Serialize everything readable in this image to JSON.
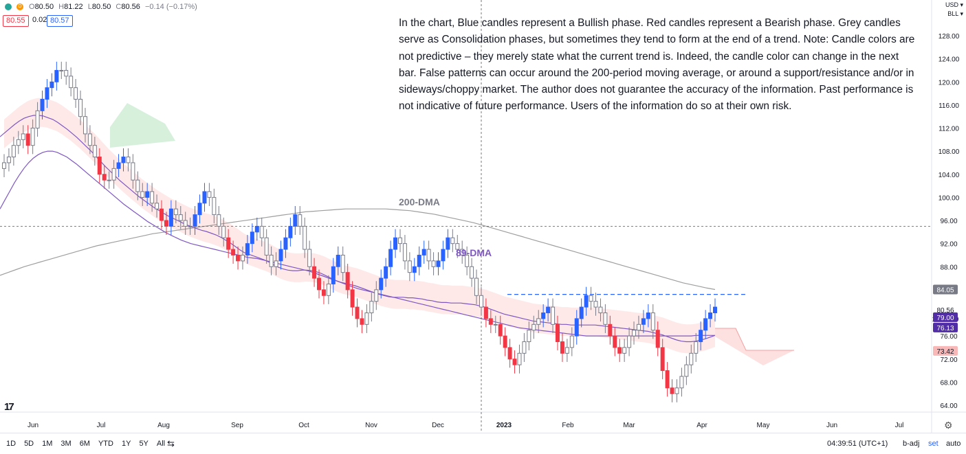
{
  "header": {
    "interval_icon": "D",
    "ohlc": [
      {
        "label": "O",
        "value": "80.50"
      },
      {
        "label": "H",
        "value": "81.22"
      },
      {
        "label": "L",
        "value": "80.50"
      },
      {
        "label": "C",
        "value": "80.56"
      }
    ],
    "change": "−0.14 (−0.17%)",
    "bid": "80.55",
    "spread": "0.02",
    "ask": "80.57"
  },
  "axis_menu": {
    "currency": "USD ▾",
    "unit": "BLL ▾"
  },
  "note": "In the chart, Blue candles represent a Bullish phase. Red candles represent a Bearish phase. Grey candles serve as Consolidation phases, but sometimes they tend to form at the end of a trend. Note: Candle colors are not predictive – they merely state what the current trend is. Indeed, the candle color can change in the next bar. False patterns can occur around the 200-period moving average, or around a support/resistance and/or in sideways/choppy market. The author does not guarantee the accuracy of the information. Past performance is not indicative of future performance. Users of the information do so at their own risk.",
  "chart_data": {
    "type": "candlestick",
    "x_labels": [
      "Jun",
      "Jul",
      "Aug",
      "Sep",
      "Oct",
      "Nov",
      "Dec",
      "2023",
      "Feb",
      "Mar",
      "Apr",
      "May",
      "Jun",
      "Jul"
    ],
    "y_ticks": [
      "128.00",
      "124.00",
      "120.00",
      "116.00",
      "112.00",
      "108.00",
      "104.00",
      "100.00",
      "96.00",
      "92.00",
      "88.00",
      "84.00",
      "80.00",
      "76.00",
      "72.00",
      "68.00",
      "64.00"
    ],
    "ylim": [
      62,
      131
    ],
    "annotations": [
      {
        "text": "200-DMA",
        "color": "#787b86"
      },
      {
        "text": "89-DMA",
        "color": "#7e57c2"
      }
    ],
    "price_tags": [
      {
        "text": "84.05",
        "value": 84.05,
        "bg": "#787b86",
        "fg": "#ffffff"
      },
      {
        "text": "80.56",
        "value": 80.56,
        "bg": "#ffffff",
        "fg": "#131722"
      },
      {
        "text": "17:30:09",
        "value": 80.56,
        "bg": "#ffffff",
        "fg": "#131722",
        "sub": true
      },
      {
        "text": "79.00",
        "value": 79.0,
        "bg": "#512da8",
        "fg": "#ffffff"
      },
      {
        "text": "76.13",
        "value": 76.13,
        "bg": "#512da8",
        "fg": "#ffffff"
      },
      {
        "text": "73.42",
        "value": 73.42,
        "bg": "#f8b8b8",
        "fg": "#131722"
      }
    ],
    "resistance_level": 83.2,
    "crosshair_price": 95.0,
    "series": {
      "close": [
        106,
        107,
        109,
        110,
        111,
        109,
        112,
        115,
        117,
        119,
        120,
        122,
        122,
        121,
        119,
        117,
        114,
        111,
        109,
        107,
        104,
        103,
        103,
        105,
        106,
        107,
        106,
        103,
        101,
        100,
        101,
        99,
        98,
        96,
        95,
        98,
        97,
        96,
        95,
        95,
        97,
        99,
        101,
        100,
        97,
        95,
        93,
        91,
        90,
        89,
        90,
        92,
        94,
        95,
        93,
        90,
        88,
        89,
        91,
        93,
        95,
        97,
        95,
        91,
        88,
        86,
        84,
        83,
        85,
        88,
        90,
        87,
        84,
        81,
        79,
        78,
        80,
        82,
        84,
        86,
        88,
        91,
        93,
        92,
        89,
        87,
        88,
        90,
        91,
        89,
        88,
        89,
        91,
        93,
        92,
        91,
        90,
        88,
        86,
        83,
        81,
        79,
        78,
        78,
        76,
        74,
        72,
        71,
        73,
        75,
        77,
        78,
        79,
        80,
        81,
        78,
        75,
        73,
        74,
        76,
        79,
        81,
        83,
        82,
        81,
        80,
        78,
        76,
        74,
        73,
        74,
        76,
        77,
        78,
        79,
        80,
        77,
        74,
        70,
        67,
        66,
        67,
        69,
        71,
        73,
        75,
        77,
        79,
        80,
        81
      ],
      "ma_short": [
        110.5,
        111.2,
        111.9,
        112.6,
        113.2,
        113.7,
        114,
        114.2,
        114.2,
        114.1,
        113.8,
        113.5,
        113,
        112.4,
        111.8,
        111.1,
        110.4,
        109.6,
        108.8,
        108,
        107.1,
        106.2,
        105.3,
        104.5,
        103.7,
        102.9,
        102.2,
        101.5,
        100.8,
        100.1,
        99.5,
        98.9,
        98.3,
        97.8,
        97.3,
        96.8,
        96.4,
        96,
        95.6,
        95.2,
        94.9,
        94.6,
        94.3,
        94.1,
        93.8,
        93.5,
        93.1,
        92.6,
        92.1,
        91.5,
        90.9,
        90.4,
        90.1,
        89.8,
        89.5,
        89.2,
        88.8,
        88.3,
        87.9,
        87.6,
        87.4,
        87.3,
        87.3,
        87.4,
        87.4,
        87.3,
        87.1,
        86.8,
        86.4,
        86,
        85.6,
        85.3,
        85.1,
        84.9,
        84.7,
        84.4,
        84.1,
        83.8,
        83.5,
        83.2,
        83,
        82.8,
        82.7,
        82.7,
        82.7,
        82.6,
        82.6,
        82.5,
        82.4,
        82.2,
        82.1,
        81.9,
        81.8,
        81.8,
        81.7,
        81.7,
        81.7,
        81.6,
        81.5,
        81.4,
        81.2,
        81,
        80.7,
        80.4,
        80.1,
        79.8,
        79.6,
        79.4,
        79.2,
        79,
        78.8,
        78.6,
        78.5,
        78.4,
        78.3,
        78.2,
        78.1,
        78,
        78,
        77.9,
        77.9,
        77.9,
        77.9,
        77.9,
        77.9,
        77.8,
        77.7,
        77.6,
        77.5,
        77.4,
        77.3,
        77.2,
        77.1,
        77,
        76.9,
        76.8,
        76.6,
        76.4,
        76.2,
        75.9,
        75.6,
        75.3,
        75.1,
        75,
        75,
        75.1,
        75.3,
        75.5,
        75.8,
        76.1
      ],
      "ma_89": [
        98,
        99.5,
        101,
        102.5,
        103.8,
        105,
        106,
        106.8,
        107.4,
        107.8,
        108,
        108,
        107.8,
        107.4,
        107,
        106.4,
        105.8,
        105.1,
        104.4,
        103.7,
        103,
        102.3,
        101.6,
        100.9,
        100.2,
        99.5,
        98.8,
        98.2,
        97.6,
        97,
        96.4,
        95.8,
        95.3,
        94.8,
        94.3,
        93.8,
        93.4,
        93,
        92.6,
        92.3,
        92,
        91.8,
        91.6,
        91.4,
        91.2,
        91,
        90.8,
        90.6,
        90.4,
        90.2,
        90,
        89.8,
        89.6,
        89.5,
        89.4,
        89.2,
        89,
        88.8,
        88.6,
        88.4,
        88.2,
        88,
        87.8,
        87.6,
        87.4,
        87.2,
        86.9,
        86.6,
        86.3,
        86,
        85.7,
        85.4,
        85.1,
        84.8,
        84.5,
        84.2,
        84,
        83.8,
        83.6,
        83.4,
        83.2,
        83,
        82.8,
        82.6,
        82.4,
        82.2,
        82,
        81.8,
        81.6,
        81.4,
        81.2,
        81,
        80.8,
        80.6,
        80.4,
        80.2,
        80,
        79.8,
        79.6,
        79.4,
        79.2,
        79,
        78.8,
        78.6,
        78.4,
        78.2,
        78,
        77.8,
        77.6,
        77.4,
        77.3,
        77.2,
        77.1,
        77,
        76.9,
        76.8,
        76.7,
        76.6,
        76.5,
        76.4,
        76.3,
        76.2,
        76.1,
        76,
        76,
        76,
        76,
        76,
        76,
        76,
        76,
        76,
        76,
        76,
        76,
        76,
        76,
        76,
        76,
        76,
        76,
        76,
        76,
        76,
        76,
        76,
        76.1,
        76.1,
        76.1,
        76.1,
        76.1
      ],
      "ma_200": [
        86.5,
        87,
        87.5,
        88,
        88.4,
        88.8,
        89.2,
        89.6,
        90,
        90.4,
        90.8,
        91.2,
        91.6,
        91.9,
        92.2,
        92.5,
        92.8,
        93.1,
        93.4,
        93.7,
        93.9,
        94.1,
        94.3,
        94.5,
        94.7,
        94.9,
        95.1,
        95.3,
        95.5,
        95.7,
        95.9,
        96.1,
        96.3,
        96.5,
        96.7,
        96.9,
        97.1,
        97.3,
        97.5,
        97.6,
        97.7,
        97.8,
        97.9,
        98,
        98,
        98,
        98,
        98,
        98,
        97.9,
        97.8,
        97.7,
        97.5,
        97.3,
        97.1,
        96.8,
        96.5,
        96.2,
        95.9,
        95.6,
        95.2,
        94.8,
        94.4,
        94,
        93.6,
        93.2,
        92.8,
        92.4,
        92,
        91.6,
        91.2,
        90.8,
        90.4,
        90,
        89.6,
        89.2,
        88.8,
        88.4,
        88,
        87.6,
        87.2,
        86.8,
        86.4,
        86,
        85.6,
        85.2,
        84.9,
        84.6,
        84.3,
        84.05
      ]
    },
    "candle_colors": {
      "bullish": "#2962ff",
      "bearish": "#f23645",
      "consolidation": "#b2b5be"
    },
    "cloud_colors": {
      "bearish": "#fde0e0",
      "bullish": "#d7f0dc"
    }
  },
  "bottom": {
    "timeframes": [
      "1D",
      "5D",
      "1M",
      "3M",
      "6M",
      "YTD",
      "1Y",
      "5Y",
      "All"
    ],
    "time": "04:39:51 (UTC+1)",
    "options": [
      "b-adj",
      "set",
      "auto"
    ]
  }
}
